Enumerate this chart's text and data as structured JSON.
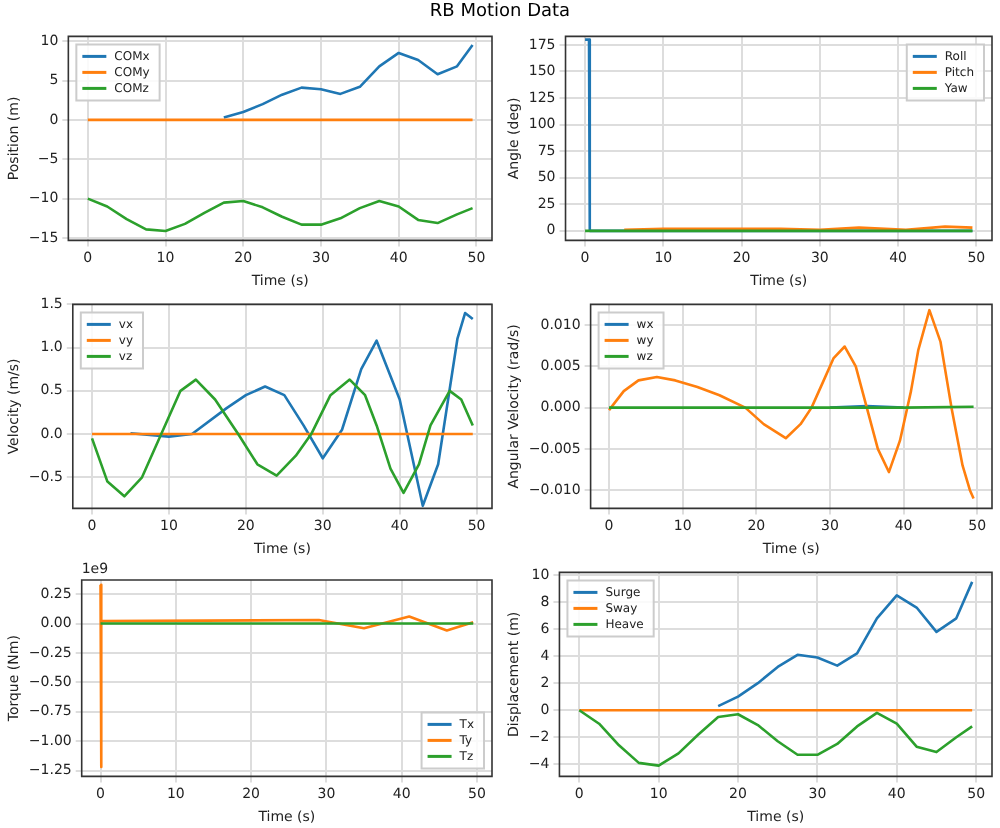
{
  "chart_data": [
    {
      "type": "line",
      "title": "RB Motion Data",
      "xlabel": "Time (s)",
      "ylabel": "Position (m)",
      "legend": "top left",
      "grid": true,
      "x": [
        0,
        2.5,
        5,
        7.5,
        10,
        12.5,
        15,
        17.5,
        20,
        22.5,
        25,
        27.5,
        30,
        32.5,
        35,
        37.5,
        40,
        42.5,
        45,
        47.5,
        49.5
      ],
      "xlim": [
        -2.5,
        52
      ],
      "xticks": [
        0,
        10,
        20,
        30,
        40,
        50
      ],
      "ylim": [
        -15.3,
        10.6
      ],
      "yticks": [
        -15,
        -10,
        -5,
        0,
        5,
        10
      ],
      "series": [
        {
          "name": "COMx",
          "color": "#1f77b4",
          "values": [
            null,
            null,
            null,
            null,
            null,
            null,
            null,
            0.3,
            1.0,
            2.0,
            3.2,
            4.1,
            3.9,
            3.3,
            4.2,
            6.8,
            8.5,
            7.6,
            5.8,
            6.8,
            9.5
          ]
        },
        {
          "name": "COMy",
          "color": "#ff7f0e",
          "values": [
            0,
            0,
            0,
            0,
            0,
            0,
            0,
            0,
            0,
            0,
            0,
            0,
            0,
            0,
            0,
            0,
            0,
            0,
            0,
            0,
            0
          ]
        },
        {
          "name": "COMz",
          "color": "#2ca02c",
          "values": [
            -10,
            -11,
            -12.6,
            -13.9,
            -14.1,
            -13.2,
            -11.8,
            -10.5,
            -10.3,
            -11.1,
            -12.3,
            -13.3,
            -13.3,
            -12.5,
            -11.2,
            -10.3,
            -11,
            -12.7,
            -13.1,
            -12,
            -11.2
          ]
        }
      ]
    },
    {
      "type": "line",
      "xlabel": "Time (s)",
      "ylabel": "Angle (deg)",
      "legend": "top right",
      "grid": true,
      "x": [
        0,
        5,
        10,
        15,
        20,
        25,
        30,
        35,
        41,
        46,
        49.5
      ],
      "xlim": [
        -2.5,
        52
      ],
      "xticks": [
        0,
        10,
        20,
        30,
        40,
        50
      ],
      "ylim": [
        -9,
        183
      ],
      "yticks": [
        0,
        25,
        50,
        75,
        100,
        125,
        150,
        175
      ],
      "series": [
        {
          "name": "Roll",
          "color": "#1f77b4",
          "x": [
            0,
            0.5,
            0.6,
            49.5
          ],
          "values": [
            180,
            180,
            0,
            0
          ]
        },
        {
          "name": "Pitch",
          "color": "#ff7f0e",
          "values": [
            null,
            1,
            2,
            2,
            2,
            2,
            1,
            3,
            1,
            4,
            3
          ]
        },
        {
          "name": "Yaw",
          "color": "#2ca02c",
          "values": [
            0,
            0,
            0,
            0,
            0,
            0,
            0,
            0,
            0,
            0,
            0
          ]
        }
      ]
    },
    {
      "type": "line",
      "xlabel": "Time (s)",
      "ylabel": "Velocity (m/s)",
      "legend": "top left",
      "grid": true,
      "x": [
        0,
        10,
        20,
        30,
        40,
        49.5
      ],
      "xlim": [
        -2.5,
        52
      ],
      "xticks": [
        0,
        10,
        20,
        30,
        40,
        50
      ],
      "ylim": [
        -0.86,
        1.5
      ],
      "yticks": [
        {
          "value": -0.5,
          "label": "−0.5"
        },
        {
          "value": 0,
          "label": "0.0"
        },
        0.5,
        {
          "value": 1,
          "label": "1.0"
        },
        1.5
      ],
      "series": [
        {
          "name": "vx",
          "color": "#1f77b4",
          "x": [
            5,
            10,
            13,
            17.5,
            20,
            22.5,
            25,
            27.5,
            30,
            32.5,
            35,
            37,
            40,
            43,
            45,
            47.5,
            48.5,
            49.5
          ],
          "values": [
            0.01,
            -0.03,
            0,
            0.3,
            0.45,
            0.55,
            0.45,
            0.1,
            -0.28,
            0.05,
            0.75,
            1.08,
            0.4,
            -0.83,
            -0.35,
            1.1,
            1.4,
            1.33
          ]
        },
        {
          "name": "vy",
          "color": "#ff7f0e",
          "values": [
            0,
            0,
            0,
            0,
            0,
            0
          ]
        },
        {
          "name": "vz",
          "color": "#2ca02c",
          "x": [
            0,
            2,
            4.2,
            6.5,
            9,
            11.5,
            13.5,
            16,
            19,
            21.5,
            24,
            26.5,
            28.5,
            31,
            33.5,
            35.5,
            37,
            38.8,
            40.5,
            42.5,
            44,
            46.5,
            48,
            49.5
          ],
          "values": [
            -0.05,
            -0.55,
            -0.72,
            -0.5,
            0,
            0.5,
            0.63,
            0.4,
            0,
            -0.35,
            -0.48,
            -0.25,
            0,
            0.45,
            0.63,
            0.45,
            0.1,
            -0.4,
            -0.68,
            -0.35,
            0.1,
            0.5,
            0.4,
            0.1
          ]
        }
      ]
    },
    {
      "type": "line",
      "xlabel": "Time (s)",
      "ylabel": "Angular Velocity (rad/s)",
      "legend": "top left",
      "grid": true,
      "x": [
        0,
        10,
        20,
        30,
        35,
        40,
        49.5
      ],
      "xlim": [
        -2.5,
        52
      ],
      "xticks": [
        0,
        10,
        20,
        30,
        40,
        50
      ],
      "ylim": [
        -0.0122,
        0.0125
      ],
      "yticks": [
        {
          "value": -0.01,
          "label": "−0.010"
        },
        {
          "value": -0.005,
          "label": "−0.005"
        },
        {
          "value": 0,
          "label": "0.000"
        },
        {
          "value": 0.005,
          "label": "0.005"
        },
        {
          "value": 0.01,
          "label": "0.010"
        }
      ],
      "series": [
        {
          "name": "wx",
          "color": "#1f77b4",
          "values": [
            null,
            null,
            null,
            0,
            0.0002,
            0,
            null
          ]
        },
        {
          "name": "wy",
          "color": "#ff7f0e",
          "x": [
            0,
            2,
            4,
            6.5,
            9,
            12,
            15,
            18.5,
            21,
            24,
            26,
            27.5,
            29,
            30.5,
            32,
            33.5,
            35,
            36.5,
            38,
            39.5,
            41,
            42,
            43.5,
            45,
            46.5,
            48,
            49,
            49.5
          ],
          "values": [
            -0.0003,
            0.002,
            0.0033,
            0.0037,
            0.0033,
            0.0025,
            0.0015,
            0,
            -0.002,
            -0.0037,
            -0.002,
            0,
            0.003,
            0.006,
            0.0074,
            0.005,
            0,
            -0.005,
            -0.0078,
            -0.004,
            0.002,
            0.007,
            0.0118,
            0.008,
            0,
            -0.007,
            -0.01,
            -0.011
          ]
        },
        {
          "name": "wz",
          "color": "#2ca02c",
          "values": [
            0,
            0,
            0,
            0,
            0,
            0,
            0.0001
          ]
        }
      ]
    },
    {
      "type": "line",
      "xlabel": "Time (s)",
      "ylabel": "Torque (Nm)",
      "legend": "bottom right",
      "grid": true,
      "annotations": [
        "1e9"
      ],
      "x": [
        0,
        10,
        20,
        30,
        40,
        49.5
      ],
      "xlim": [
        -2.5,
        52
      ],
      "xticks": [
        0,
        10,
        20,
        30,
        40,
        50
      ],
      "ylim": [
        -1.3,
        0.37
      ],
      "yticks": [
        {
          "value": -1.25,
          "label": "−1.25"
        },
        {
          "value": -1,
          "label": "−1.00"
        },
        {
          "value": -0.75,
          "label": "−0.75"
        },
        {
          "value": -0.5,
          "label": "−0.50"
        },
        {
          "value": -0.25,
          "label": "−0.25"
        },
        {
          "value": 0,
          "label": "0.00"
        },
        0.25
      ],
      "series": [
        {
          "name": "Tx",
          "color": "#1f77b4",
          "values": [
            null,
            null,
            null,
            null,
            null,
            null
          ]
        },
        {
          "name": "Ty",
          "color": "#ff7f0e",
          "x": [
            0,
            0.05,
            0.15,
            29,
            35,
            41,
            46,
            49.5
          ],
          "values": [
            0.33,
            -1.22,
            0.02,
            0.03,
            -0.04,
            0.06,
            -0.06,
            0.01
          ]
        },
        {
          "name": "Tz",
          "color": "#2ca02c",
          "values": [
            0,
            0,
            0,
            0,
            0,
            0
          ]
        }
      ]
    },
    {
      "type": "line",
      "xlabel": "Time (s)",
      "ylabel": "Displacement (m)",
      "legend": "top left",
      "grid": true,
      "x": [
        0,
        2.5,
        5,
        7.5,
        10,
        12.5,
        15,
        17.5,
        20,
        22.5,
        25,
        27.5,
        30,
        32.5,
        35,
        37.5,
        40,
        42.5,
        45,
        47.5,
        49.5
      ],
      "xlim": [
        -2.5,
        52
      ],
      "xticks": [
        0,
        10,
        20,
        30,
        40,
        50
      ],
      "ylim": [
        -4.9,
        10.2
      ],
      "yticks": [
        -4,
        -2,
        0,
        2,
        4,
        6,
        8,
        10
      ],
      "series": [
        {
          "name": "Surge",
          "color": "#1f77b4",
          "values": [
            null,
            null,
            null,
            null,
            null,
            null,
            null,
            0.3,
            1.0,
            2.0,
            3.2,
            4.1,
            3.9,
            3.3,
            4.2,
            6.8,
            8.5,
            7.6,
            5.8,
            6.8,
            9.5
          ]
        },
        {
          "name": "Sway",
          "color": "#ff7f0e",
          "values": [
            0,
            0,
            0,
            0,
            0,
            0,
            0,
            0,
            0,
            0,
            0,
            0,
            0,
            0,
            0,
            0,
            0,
            0,
            0,
            0,
            0
          ]
        },
        {
          "name": "Heave",
          "color": "#2ca02c",
          "values": [
            0,
            -1.0,
            -2.6,
            -3.9,
            -4.1,
            -3.2,
            -1.8,
            -0.5,
            -0.3,
            -1.1,
            -2.3,
            -3.3,
            -3.3,
            -2.5,
            -1.2,
            -0.2,
            -1.0,
            -2.7,
            -3.1,
            -2.0,
            -1.2
          ]
        }
      ]
    }
  ]
}
